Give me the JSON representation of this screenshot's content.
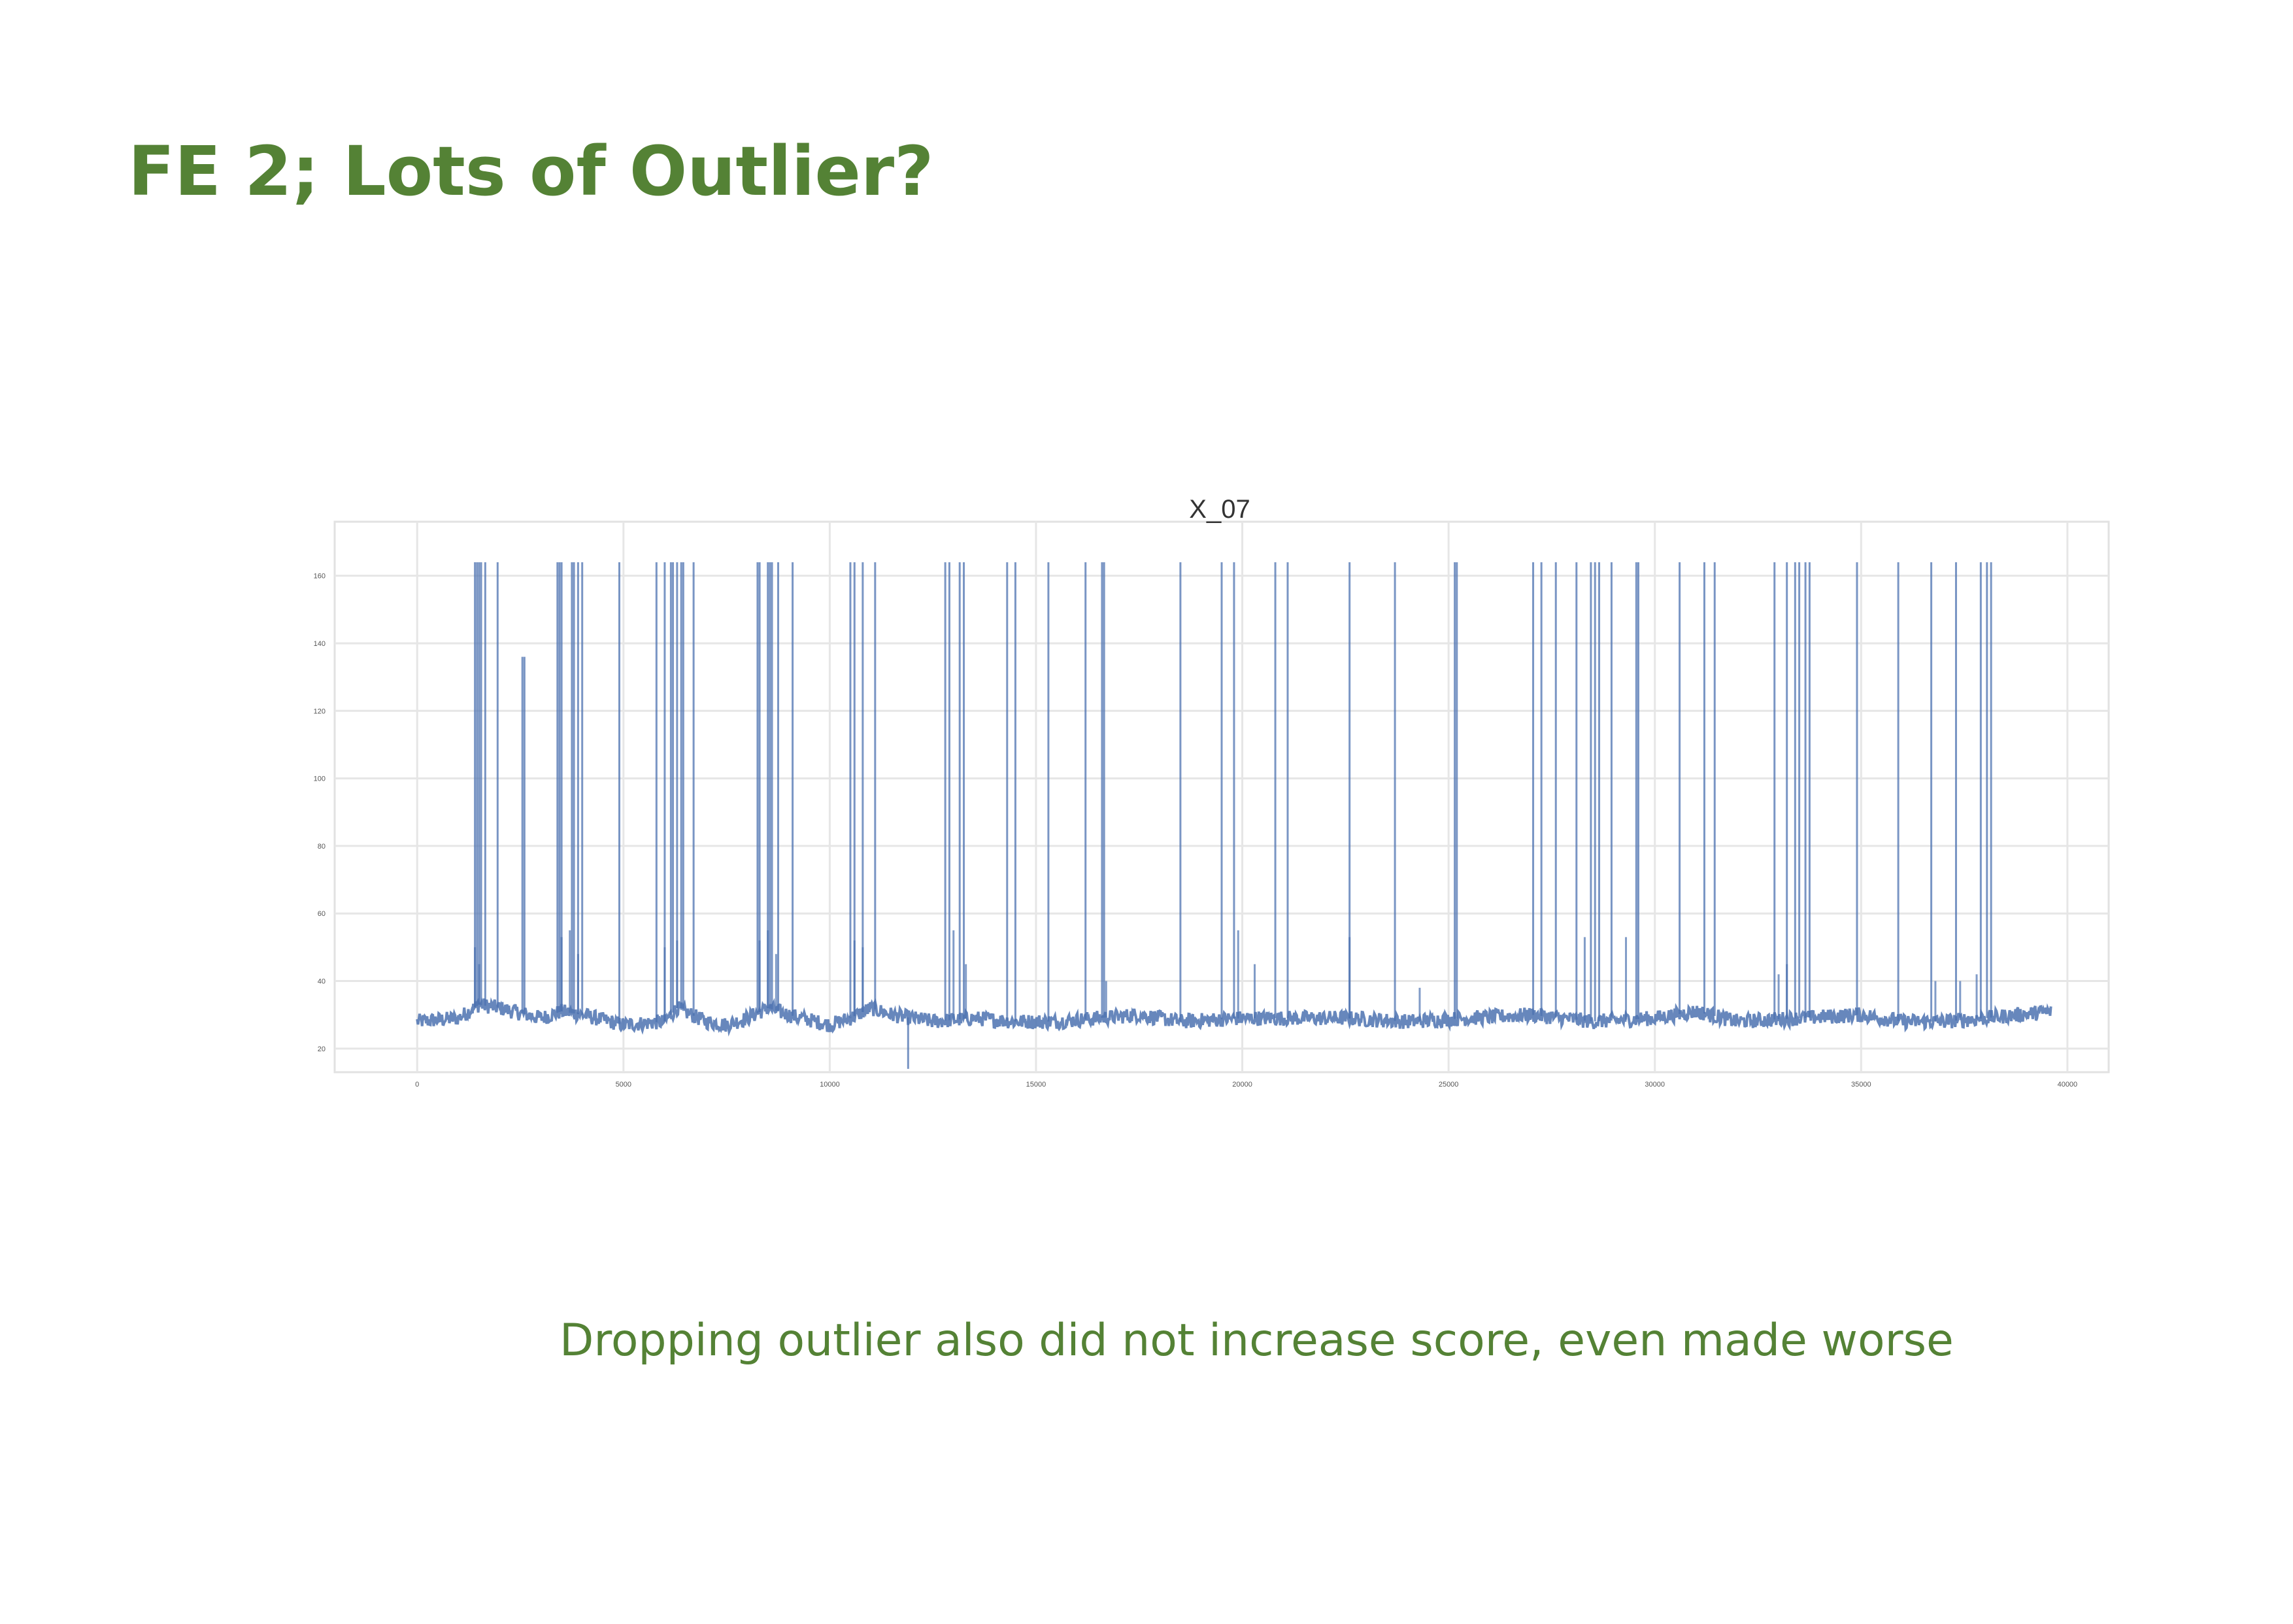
{
  "slide": {
    "title": "FE 2; Lots of Outlier?",
    "caption": "Dropping outlier also did not increase score, even made worse",
    "accent_color": "#548235"
  },
  "chart_data": {
    "type": "line",
    "title": "X_07",
    "xlabel": "",
    "ylabel": "",
    "xlim": [
      -2000,
      41000
    ],
    "ylim": [
      13,
      176
    ],
    "x_ticks": [
      0,
      5000,
      10000,
      15000,
      20000,
      25000,
      30000,
      35000,
      40000
    ],
    "x_tick_labels": [
      "0",
      "5000",
      "10000",
      "15000",
      "20000",
      "25000",
      "30000",
      "35000",
      "40000"
    ],
    "y_ticks": [
      20,
      40,
      60,
      80,
      100,
      120,
      140,
      160
    ],
    "y_tick_labels": [
      "20",
      "40",
      "60",
      "80",
      "100",
      "120",
      "140",
      "160"
    ],
    "grid": true,
    "legend": "none",
    "line_color": "#4c72b0",
    "series": [
      {
        "x_start": 0,
        "x_end": 39600,
        "baseline": [
          [
            0,
            28
          ],
          [
            1000,
            29
          ],
          [
            1500,
            33
          ],
          [
            2000,
            32
          ],
          [
            3000,
            29
          ],
          [
            3500,
            31
          ],
          [
            4000,
            30
          ],
          [
            5000,
            27
          ],
          [
            6000,
            28
          ],
          [
            6300,
            32
          ],
          [
            7000,
            28
          ],
          [
            7500,
            27
          ],
          [
            8000,
            29
          ],
          [
            8500,
            32
          ],
          [
            9000,
            30
          ],
          [
            10000,
            27
          ],
          [
            10500,
            29
          ],
          [
            11000,
            32
          ],
          [
            11500,
            30
          ],
          [
            12500,
            28
          ],
          [
            13500,
            29
          ],
          [
            14500,
            28
          ],
          [
            15500,
            28
          ],
          [
            16500,
            29
          ],
          [
            17500,
            30
          ],
          [
            18500,
            28
          ],
          [
            20000,
            29
          ],
          [
            21000,
            29
          ],
          [
            22500,
            29
          ],
          [
            24000,
            28
          ],
          [
            25500,
            29
          ],
          [
            27000,
            30
          ],
          [
            28500,
            28
          ],
          [
            30000,
            29
          ],
          [
            31000,
            31
          ],
          [
            32000,
            28
          ],
          [
            33500,
            29
          ],
          [
            35000,
            30
          ],
          [
            36000,
            28
          ],
          [
            37000,
            28
          ],
          [
            38000,
            29
          ],
          [
            39600,
            31
          ]
        ],
        "spikes": [
          [
            1400,
            164
          ],
          [
            1450,
            164
          ],
          [
            1500,
            164
          ],
          [
            1550,
            164
          ],
          [
            1650,
            164
          ],
          [
            1950,
            164
          ],
          [
            2550,
            136
          ],
          [
            2600,
            136
          ],
          [
            3400,
            164
          ],
          [
            3450,
            164
          ],
          [
            3500,
            164
          ],
          [
            3750,
            164
          ],
          [
            3800,
            164
          ],
          [
            3900,
            164
          ],
          [
            4000,
            164
          ],
          [
            4900,
            164
          ],
          [
            5800,
            164
          ],
          [
            6000,
            164
          ],
          [
            6150,
            164
          ],
          [
            6200,
            164
          ],
          [
            6300,
            164
          ],
          [
            6400,
            164
          ],
          [
            6450,
            164
          ],
          [
            6700,
            164
          ],
          [
            8250,
            164
          ],
          [
            8300,
            164
          ],
          [
            8500,
            164
          ],
          [
            8550,
            164
          ],
          [
            8600,
            164
          ],
          [
            8750,
            164
          ],
          [
            9100,
            164
          ],
          [
            10500,
            164
          ],
          [
            10600,
            164
          ],
          [
            10800,
            164
          ],
          [
            11100,
            164
          ],
          [
            12800,
            164
          ],
          [
            12900,
            164
          ],
          [
            13150,
            164
          ],
          [
            13250,
            164
          ],
          [
            14300,
            164
          ],
          [
            14500,
            164
          ],
          [
            15300,
            164
          ],
          [
            16200,
            164
          ],
          [
            16600,
            164
          ],
          [
            16650,
            164
          ],
          [
            18500,
            164
          ],
          [
            19500,
            164
          ],
          [
            19800,
            164
          ],
          [
            20800,
            164
          ],
          [
            21100,
            164
          ],
          [
            22600,
            164
          ],
          [
            23700,
            164
          ],
          [
            25150,
            164
          ],
          [
            25200,
            164
          ],
          [
            27050,
            164
          ],
          [
            27250,
            164
          ],
          [
            27600,
            164
          ],
          [
            28100,
            164
          ],
          [
            28450,
            164
          ],
          [
            28550,
            164
          ],
          [
            28650,
            164
          ],
          [
            28950,
            164
          ],
          [
            29550,
            164
          ],
          [
            29600,
            164
          ],
          [
            30600,
            164
          ],
          [
            31200,
            164
          ],
          [
            31450,
            164
          ],
          [
            32900,
            164
          ],
          [
            33200,
            164
          ],
          [
            33400,
            164
          ],
          [
            33500,
            164
          ],
          [
            33650,
            164
          ],
          [
            33750,
            164
          ],
          [
            34900,
            164
          ],
          [
            35900,
            164
          ],
          [
            36700,
            164
          ],
          [
            37300,
            164
          ],
          [
            37900,
            164
          ],
          [
            38050,
            164
          ],
          [
            38150,
            164
          ]
        ],
        "dips": [
          [
            11900,
            14
          ]
        ],
        "bursts": [
          [
            1400,
            50
          ],
          [
            1500,
            45
          ],
          [
            3500,
            53
          ],
          [
            3700,
            55
          ],
          [
            3900,
            48
          ],
          [
            6000,
            50
          ],
          [
            6300,
            52
          ],
          [
            8300,
            52
          ],
          [
            8500,
            55
          ],
          [
            8700,
            48
          ],
          [
            10600,
            52
          ],
          [
            10800,
            50
          ],
          [
            13000,
            55
          ],
          [
            13300,
            45
          ],
          [
            16700,
            40
          ],
          [
            19900,
            55
          ],
          [
            20300,
            45
          ],
          [
            22600,
            53
          ],
          [
            24300,
            38
          ],
          [
            28300,
            53
          ],
          [
            29300,
            53
          ],
          [
            33000,
            42
          ],
          [
            33200,
            45
          ],
          [
            36800,
            40
          ],
          [
            37400,
            40
          ],
          [
            37800,
            42
          ]
        ]
      }
    ]
  }
}
